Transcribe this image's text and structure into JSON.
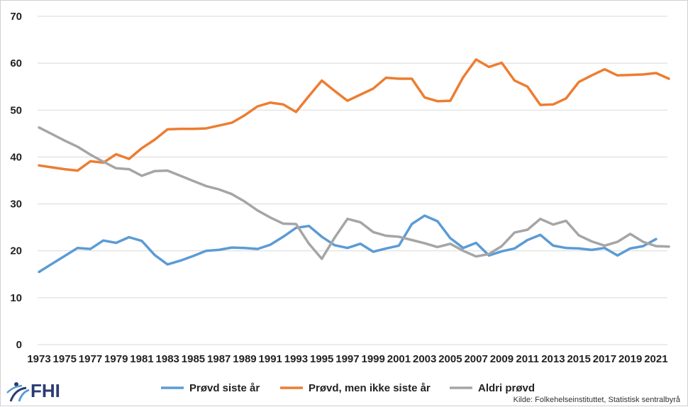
{
  "chart_data": {
    "type": "line",
    "title": "",
    "xlabel": "",
    "ylabel": "",
    "ylim": [
      0,
      70
    ],
    "yticks": [
      0,
      10,
      20,
      30,
      40,
      50,
      60,
      70
    ],
    "x": [
      1973,
      1974,
      1975,
      1976,
      1977,
      1978,
      1979,
      1980,
      1981,
      1982,
      1983,
      1984,
      1985,
      1986,
      1987,
      1988,
      1989,
      1990,
      1991,
      1992,
      1993,
      1994,
      1995,
      1996,
      1997,
      1998,
      1999,
      2000,
      2001,
      2002,
      2003,
      2004,
      2005,
      2006,
      2007,
      2008,
      2009,
      2010,
      2011,
      2012,
      2013,
      2014,
      2015,
      2016,
      2017,
      2018,
      2019,
      2020,
      2021,
      2022
    ],
    "xtick_labels": [
      "1973",
      "1975",
      "1977",
      "1979",
      "1981",
      "1983",
      "1985",
      "1987",
      "1989",
      "1991",
      "1993",
      "1995",
      "1997",
      "1999",
      "2001",
      "2003",
      "2005",
      "2007",
      "2009",
      "2011",
      "2013",
      "2015",
      "2017",
      "2019",
      "2021"
    ],
    "grid": true,
    "legend_position": "bottom",
    "series": [
      {
        "name": "Prøvd siste år",
        "color": "#5b9bd5",
        "values": [
          15.5,
          17.2,
          18.9,
          20.6,
          20.4,
          22.2,
          21.7,
          22.9,
          22.1,
          19.1,
          17.1,
          17.9,
          18.9,
          20.0,
          20.2,
          20.7,
          20.6,
          20.4,
          21.3,
          23.0,
          24.9,
          25.3,
          23.0,
          21.2,
          20.6,
          21.5,
          19.8,
          20.5,
          21.1,
          25.7,
          27.5,
          26.3,
          22.7,
          20.6,
          21.7,
          19.0,
          19.9,
          20.5,
          22.3,
          23.4,
          21.1,
          20.6,
          20.5,
          20.2,
          20.6,
          19.0,
          20.5,
          21.0,
          22.5,
          null
        ]
      },
      {
        "name": "Prøvd, men ikke siste år",
        "color": "#ed7d31",
        "values": [
          38.2,
          37.8,
          37.4,
          37.1,
          39.1,
          38.8,
          40.6,
          39.6,
          41.9,
          43.7,
          45.9,
          46.0,
          46.0,
          46.1,
          46.7,
          47.3,
          48.9,
          50.8,
          51.6,
          51.2,
          49.6,
          53.0,
          56.3,
          54.1,
          52.0,
          53.3,
          54.6,
          56.9,
          56.7,
          56.7,
          52.7,
          51.9,
          52.0,
          57.0,
          60.8,
          59.2,
          60.1,
          56.3,
          55.0,
          51.1,
          51.2,
          52.5,
          56.0,
          57.4,
          58.7,
          57.4,
          57.5,
          57.6,
          57.9,
          56.7
        ]
      },
      {
        "name": "Aldri prøvd",
        "color": "#a5a5a5",
        "values": [
          46.3,
          44.9,
          43.5,
          42.2,
          40.5,
          39.0,
          37.6,
          37.4,
          36.0,
          37.0,
          37.1,
          36.0,
          34.9,
          33.8,
          33.1,
          32.1,
          30.5,
          28.6,
          27.1,
          25.8,
          25.7,
          21.5,
          18.3,
          22.8,
          26.8,
          26.1,
          24.0,
          23.2,
          23.0,
          22.3,
          21.6,
          20.8,
          21.5,
          20.0,
          18.8,
          19.3,
          21.0,
          23.9,
          24.5,
          26.8,
          25.6,
          26.4,
          23.3,
          22.0,
          21.1,
          21.9,
          23.6,
          21.9,
          21.0,
          20.9
        ]
      }
    ]
  },
  "source_text": "Kilde: Folkehelseinstituttet, Statistisk sentralbyrå",
  "logo": {
    "text": "FHI",
    "color": "#2a3b73"
  }
}
